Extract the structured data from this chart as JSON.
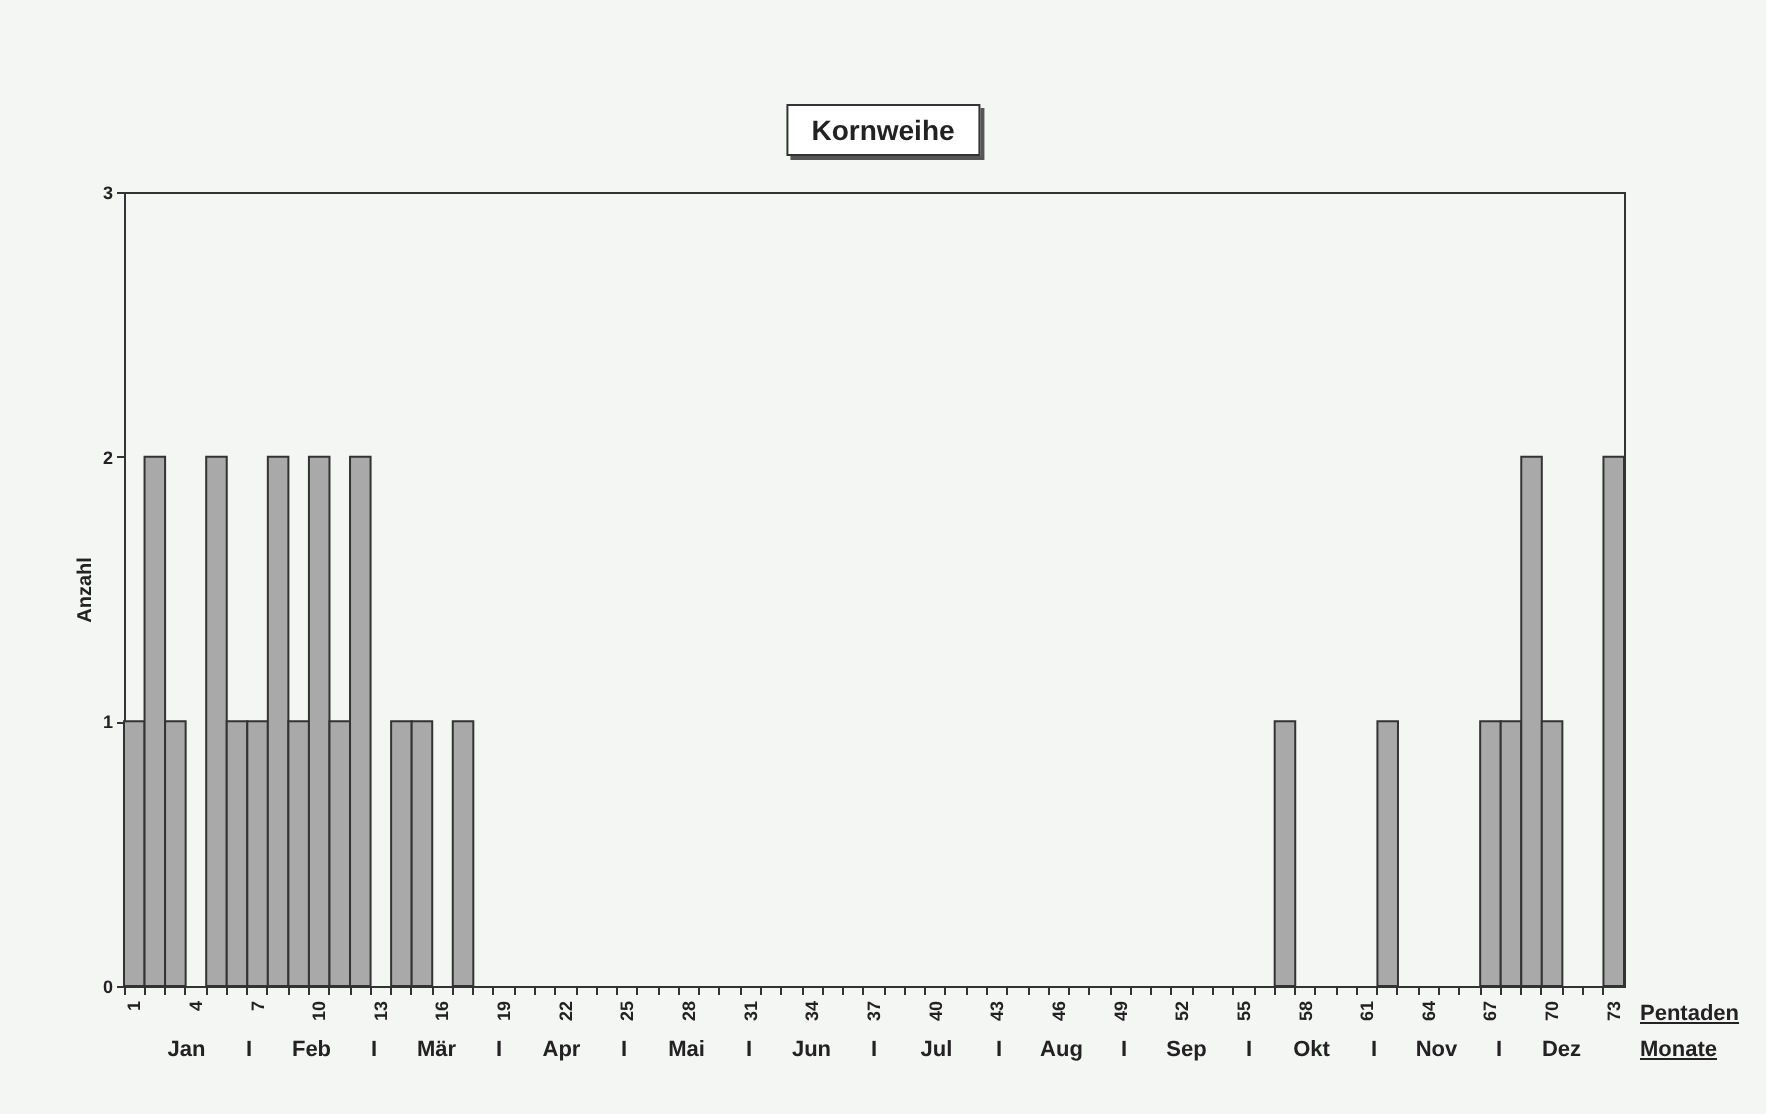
{
  "chart_data": {
    "type": "bar",
    "title": "Kornweihe",
    "xlabel": "Pentaden",
    "ylabel": "Anzahl",
    "categories": [
      "1",
      null,
      null,
      "4",
      null,
      null,
      "7",
      null,
      null,
      "10",
      null,
      null,
      "13",
      null,
      null,
      "16",
      null,
      null,
      "19",
      null,
      null,
      "22",
      null,
      null,
      "25",
      null,
      null,
      "28",
      null,
      null,
      "31",
      null,
      null,
      "34",
      null,
      null,
      "37",
      null,
      null,
      "40",
      null,
      null,
      "43",
      null,
      null,
      "46",
      null,
      null,
      "49",
      null,
      null,
      "52",
      null,
      null,
      "55",
      null,
      null,
      "58",
      null,
      null,
      "61",
      null,
      null,
      "64",
      null,
      null,
      "67",
      null,
      null,
      "70",
      null,
      null,
      "73"
    ],
    "values": [
      1,
      2,
      1,
      0,
      2,
      1,
      1,
      2,
      1,
      2,
      1,
      2,
      0,
      1,
      1,
      0,
      1,
      0,
      0,
      0,
      0,
      0,
      0,
      0,
      0,
      0,
      0,
      0,
      0,
      0,
      0,
      0,
      0,
      0,
      0,
      0,
      0,
      0,
      0,
      0,
      0,
      0,
      0,
      0,
      0,
      0,
      0,
      0,
      0,
      0,
      0,
      0,
      0,
      0,
      0,
      0,
      1,
      0,
      0,
      0,
      0,
      1,
      0,
      0,
      0,
      0,
      1,
      1,
      2,
      1,
      0,
      0,
      2
    ],
    "color": "#a9a9a9",
    "ylim": [
      0,
      3
    ],
    "yticks": [
      0,
      1,
      2,
      3
    ],
    "grid": false,
    "annotations": [
      "Jan",
      "I",
      "Feb",
      "I",
      "Mär",
      "I",
      "Apr",
      "I",
      "Mai",
      "I",
      "Jun",
      "I",
      "Jul",
      "I",
      "Aug",
      "I",
      "Sep",
      "I",
      "Okt",
      "I",
      "Nov",
      "I",
      "Dez",
      "Monate"
    ]
  }
}
